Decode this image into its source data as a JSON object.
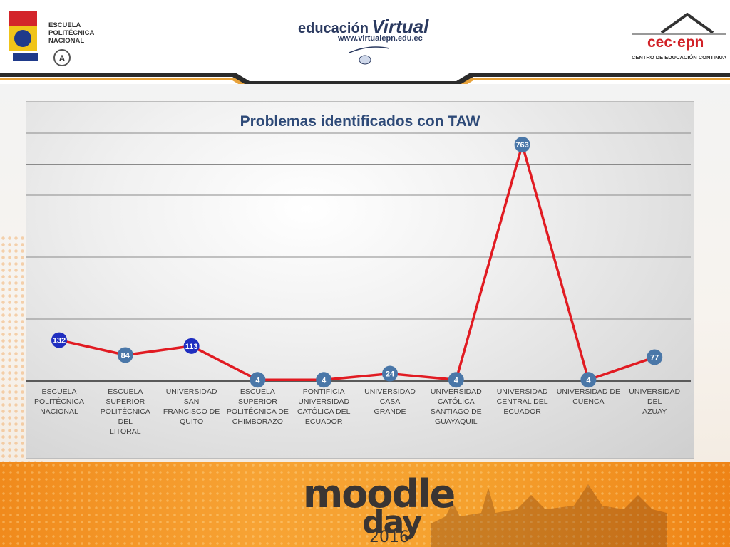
{
  "header": {
    "logo_left": {
      "line1": "ESCUELA",
      "line2": "POLITÉCNICA",
      "line3": "NACIONAL"
    },
    "logo_center": {
      "word1": "educación",
      "word2": "Virtual",
      "url": "www.virtualepn.edu.ec"
    },
    "logo_right": {
      "name": "cec·epn",
      "subtitle": "CENTRO DE EDUCACIÓN CONTINUA"
    }
  },
  "footer": {
    "moodle": "moodle",
    "day": "day",
    "year": "2016"
  },
  "colors": {
    "line": "#e11b22",
    "marker_blue": "#1f2ec0",
    "marker_teal": "#4a77a8"
  },
  "chart_data": {
    "type": "line",
    "title": "Problemas identificados con TAW",
    "categories": [
      [
        "ESCUELA",
        "POLITÉCNICA",
        "NACIONAL"
      ],
      [
        "ESCUELA SUPERIOR",
        "POLITÉCNICA DEL",
        "LITORAL"
      ],
      [
        "UNIVERSIDAD SAN",
        "FRANCISCO DE",
        "QUITO"
      ],
      [
        "ESCUELA SUPERIOR",
        "POLITÉCNICA DE",
        "CHIMBORAZO"
      ],
      [
        "PONTIFICIA",
        "UNIVERSIDAD",
        "CATÓLICA DEL",
        "ECUADOR"
      ],
      [
        "UNIVERSIDAD CASA",
        "GRANDE"
      ],
      [
        "UNIVERSIDAD",
        "CATÓLICA",
        "SANTIAGO DE",
        "GUAYAQUIL"
      ],
      [
        "UNIVERSIDAD",
        "CENTRAL DEL",
        "ECUADOR"
      ],
      [
        "UNIVERSIDAD DE",
        "CUENCA"
      ],
      [
        "UNIVERSIDAD DEL",
        "AZUAY"
      ]
    ],
    "values": [
      132,
      84,
      113,
      4,
      4,
      24,
      4,
      763,
      4,
      77
    ],
    "marker_styles": [
      "blue",
      "teal",
      "blue",
      "teal",
      "teal",
      "teal",
      "teal",
      "teal",
      "teal",
      "teal"
    ],
    "ylim": [
      0,
      800
    ],
    "grid": true,
    "legend": "none"
  }
}
